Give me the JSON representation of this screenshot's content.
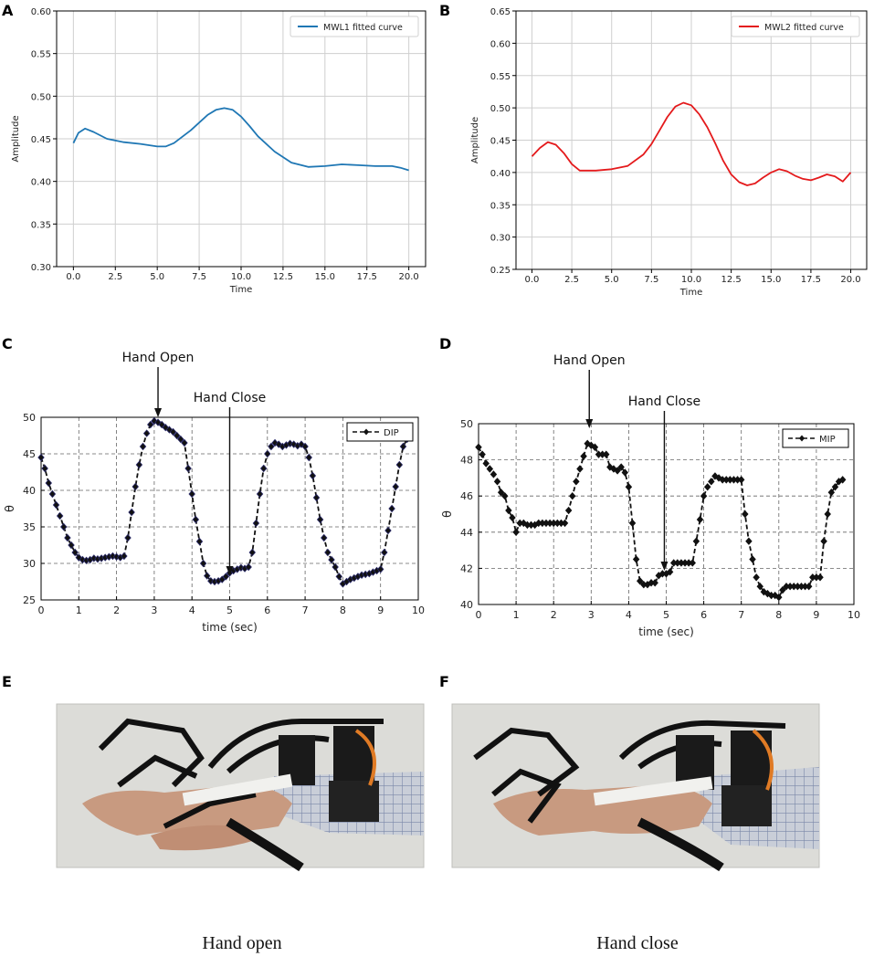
{
  "colors": {
    "blue": "#1f77b4",
    "red": "#e41a1c",
    "black": "#111111",
    "marker_outline": "#2a2a6a"
  },
  "chart_data": [
    {
      "panel": "A",
      "type": "line",
      "xlabel": "Time",
      "ylabel": "Amplitude",
      "xlim": [
        -1,
        21
      ],
      "ylim": [
        0.3,
        0.6
      ],
      "xticks": [
        0,
        2.5,
        5,
        7.5,
        10,
        12.5,
        15,
        17.5,
        20
      ],
      "xticklabels": [
        "0.0",
        "2.5",
        "5.0",
        "7.5",
        "10.0",
        "12.5",
        "15.0",
        "17.5",
        "20.0"
      ],
      "yticks": [
        0.3,
        0.35,
        0.4,
        0.45,
        0.5,
        0.55,
        0.6
      ],
      "yticklabels": [
        "0.30",
        "0.35",
        "0.40",
        "0.45",
        "0.50",
        "0.55",
        "0.60"
      ],
      "grid": true,
      "legend_position": "upper-right",
      "series": [
        {
          "name": "MWL1 fitted curve",
          "color": "blue",
          "x": [
            0,
            0.3,
            0.7,
            1.2,
            2,
            3,
            4,
            5,
            5.5,
            6,
            7,
            8,
            8.5,
            9,
            9.5,
            10,
            10.5,
            11,
            12,
            13,
            14,
            15,
            16,
            17,
            18,
            19,
            19.5,
            20
          ],
          "y": [
            0.445,
            0.457,
            0.462,
            0.458,
            0.45,
            0.446,
            0.444,
            0.441,
            0.441,
            0.445,
            0.46,
            0.478,
            0.484,
            0.486,
            0.484,
            0.476,
            0.465,
            0.453,
            0.435,
            0.422,
            0.417,
            0.418,
            0.42,
            0.419,
            0.418,
            0.418,
            0.416,
            0.413
          ]
        }
      ]
    },
    {
      "panel": "B",
      "type": "line",
      "xlabel": "Time",
      "ylabel": "Amplitude",
      "xlim": [
        -1,
        21
      ],
      "ylim": [
        0.25,
        0.65
      ],
      "xticks": [
        0,
        2.5,
        5,
        7.5,
        10,
        12.5,
        15,
        17.5,
        20
      ],
      "xticklabels": [
        "0.0",
        "2.5",
        "5.0",
        "7.5",
        "10.0",
        "12.5",
        "15.0",
        "17.5",
        "20.0"
      ],
      "yticks": [
        0.25,
        0.3,
        0.35,
        0.4,
        0.45,
        0.5,
        0.55,
        0.6,
        0.65
      ],
      "yticklabels": [
        "0.25",
        "0.30",
        "0.35",
        "0.40",
        "0.45",
        "0.50",
        "0.55",
        "0.60",
        "0.65"
      ],
      "grid": true,
      "legend_position": "upper-right",
      "series": [
        {
          "name": "MWL2 fitted curve",
          "color": "red",
          "x": [
            0,
            0.5,
            1,
            1.5,
            2,
            2.5,
            3,
            4,
            5,
            6,
            7,
            7.5,
            8,
            8.5,
            9,
            9.5,
            10,
            10.5,
            11,
            11.5,
            12,
            12.5,
            13,
            13.5,
            14,
            14.5,
            15,
            15.5,
            16,
            16.5,
            17,
            17.5,
            18,
            18.5,
            19,
            19.5,
            20
          ],
          "y": [
            0.425,
            0.438,
            0.447,
            0.443,
            0.43,
            0.413,
            0.403,
            0.403,
            0.405,
            0.41,
            0.428,
            0.444,
            0.465,
            0.486,
            0.502,
            0.508,
            0.504,
            0.49,
            0.47,
            0.445,
            0.418,
            0.397,
            0.385,
            0.38,
            0.383,
            0.392,
            0.4,
            0.405,
            0.402,
            0.395,
            0.39,
            0.388,
            0.392,
            0.397,
            0.394,
            0.386,
            0.4
          ]
        }
      ]
    },
    {
      "panel": "C",
      "type": "line",
      "xlabel": "time (sec)",
      "ylabel": "θ",
      "xlim": [
        0,
        10
      ],
      "ylim": [
        25,
        50
      ],
      "xticks": [
        0,
        1,
        2,
        3,
        4,
        5,
        6,
        7,
        8,
        9,
        10
      ],
      "xticklabels": [
        "0",
        "1",
        "2",
        "3",
        "4",
        "5",
        "6",
        "7",
        "8",
        "9",
        "10"
      ],
      "yticks": [
        25,
        30,
        35,
        40,
        45,
        50
      ],
      "yticklabels": [
        "25",
        "30",
        "35",
        "40",
        "45",
        "50"
      ],
      "grid": "dashed",
      "legend_position": "top-right",
      "annotations": [
        {
          "text": "Hand Open",
          "x": 3.1
        },
        {
          "text": "Hand Close",
          "x": 5.0
        }
      ],
      "series": [
        {
          "name": "DIP",
          "color": "black",
          "x": [
            0,
            0.1,
            0.2,
            0.3,
            0.4,
            0.5,
            0.6,
            0.7,
            0.8,
            0.9,
            1.0,
            1.1,
            1.2,
            1.3,
            1.4,
            1.5,
            1.6,
            1.7,
            1.8,
            1.9,
            2.0,
            2.1,
            2.2,
            2.3,
            2.4,
            2.5,
            2.6,
            2.7,
            2.8,
            2.9,
            3.0,
            3.1,
            3.2,
            3.3,
            3.4,
            3.5,
            3.6,
            3.7,
            3.8,
            3.9,
            4.0,
            4.1,
            4.2,
            4.3,
            4.4,
            4.5,
            4.6,
            4.7,
            4.8,
            4.9,
            5.0,
            5.1,
            5.2,
            5.3,
            5.4,
            5.5,
            5.6,
            5.7,
            5.8,
            5.9,
            6.0,
            6.1,
            6.2,
            6.3,
            6.4,
            6.5,
            6.6,
            6.7,
            6.8,
            6.9,
            7.0,
            7.1,
            7.2,
            7.3,
            7.4,
            7.5,
            7.6,
            7.7,
            7.8,
            7.9,
            8.0,
            8.1,
            8.2,
            8.3,
            8.4,
            8.5,
            8.6,
            8.7,
            8.8,
            8.9,
            9.0,
            9.1,
            9.2,
            9.3,
            9.4,
            9.5,
            9.6,
            9.7
          ],
          "y": [
            44.5,
            43.0,
            41.0,
            39.5,
            38.0,
            36.5,
            35.0,
            33.5,
            32.5,
            31.5,
            30.8,
            30.5,
            30.4,
            30.5,
            30.7,
            30.6,
            30.7,
            30.8,
            30.9,
            31.0,
            30.9,
            30.8,
            31.0,
            33.5,
            37.0,
            40.5,
            43.5,
            46.0,
            47.8,
            49.0,
            49.5,
            49.3,
            49.0,
            48.6,
            48.3,
            48.0,
            47.5,
            47.0,
            46.5,
            43.0,
            39.5,
            36.0,
            33.0,
            30.0,
            28.3,
            27.6,
            27.5,
            27.6,
            27.8,
            28.2,
            28.7,
            29.0,
            29.2,
            29.4,
            29.3,
            29.5,
            31.5,
            35.5,
            39.5,
            43.0,
            45.0,
            46.0,
            46.5,
            46.3,
            46.0,
            46.2,
            46.4,
            46.3,
            46.1,
            46.3,
            46.0,
            44.5,
            42.0,
            39.0,
            36.0,
            33.5,
            31.5,
            30.5,
            29.5,
            28.2,
            27.2,
            27.5,
            27.8,
            28.0,
            28.2,
            28.4,
            28.5,
            28.6,
            28.8,
            29.0,
            29.2,
            31.5,
            34.5,
            37.5,
            40.5,
            43.5,
            46.0,
            47.0
          ]
        }
      ]
    },
    {
      "panel": "D",
      "type": "line",
      "xlabel": "time (sec)",
      "ylabel": "θ",
      "xlim": [
        0,
        10
      ],
      "ylim": [
        40,
        50
      ],
      "xticks": [
        0,
        1,
        2,
        3,
        4,
        5,
        6,
        7,
        8,
        9,
        10
      ],
      "xticklabels": [
        "0",
        "1",
        "2",
        "3",
        "4",
        "5",
        "6",
        "7",
        "8",
        "9",
        "10"
      ],
      "yticks": [
        40,
        42,
        44,
        46,
        48,
        50
      ],
      "yticklabels": [
        "40",
        "42",
        "44",
        "46",
        "48",
        "50"
      ],
      "grid": "dashed",
      "legend_position": "top-right",
      "annotations": [
        {
          "text": "Hand Open",
          "x": 2.95
        },
        {
          "text": "Hand Close",
          "x": 4.95
        }
      ],
      "series": [
        {
          "name": "MIP",
          "color": "black",
          "x": [
            0,
            0.1,
            0.2,
            0.3,
            0.4,
            0.5,
            0.6,
            0.7,
            0.8,
            0.9,
            1.0,
            1.1,
            1.2,
            1.3,
            1.4,
            1.5,
            1.6,
            1.7,
            1.8,
            1.9,
            2.0,
            2.1,
            2.2,
            2.3,
            2.4,
            2.5,
            2.6,
            2.7,
            2.8,
            2.9,
            3.0,
            3.1,
            3.2,
            3.3,
            3.4,
            3.5,
            3.6,
            3.7,
            3.8,
            3.9,
            4.0,
            4.1,
            4.2,
            4.3,
            4.4,
            4.5,
            4.6,
            4.7,
            4.8,
            4.9,
            5.0,
            5.1,
            5.2,
            5.3,
            5.4,
            5.5,
            5.6,
            5.7,
            5.8,
            5.9,
            6.0,
            6.1,
            6.2,
            6.3,
            6.4,
            6.5,
            6.6,
            6.7,
            6.8,
            6.9,
            7.0,
            7.1,
            7.2,
            7.3,
            7.4,
            7.5,
            7.6,
            7.7,
            7.8,
            7.9,
            8.0,
            8.1,
            8.2,
            8.3,
            8.4,
            8.5,
            8.6,
            8.7,
            8.8,
            8.9,
            9.0,
            9.1,
            9.2,
            9.3,
            9.4,
            9.5,
            9.6,
            9.7
          ],
          "y": [
            48.7,
            48.3,
            47.8,
            47.5,
            47.2,
            46.8,
            46.2,
            46.0,
            45.2,
            44.8,
            44.0,
            44.5,
            44.5,
            44.4,
            44.4,
            44.4,
            44.5,
            44.5,
            44.5,
            44.5,
            44.5,
            44.5,
            44.5,
            44.5,
            45.2,
            46.0,
            46.8,
            47.5,
            48.2,
            48.9,
            48.8,
            48.7,
            48.3,
            48.3,
            48.3,
            47.6,
            47.5,
            47.4,
            47.6,
            47.3,
            46.5,
            44.5,
            42.5,
            41.3,
            41.1,
            41.1,
            41.2,
            41.2,
            41.6,
            41.7,
            41.7,
            41.8,
            42.3,
            42.3,
            42.3,
            42.3,
            42.3,
            42.3,
            43.5,
            44.7,
            46.0,
            46.5,
            46.8,
            47.1,
            47.0,
            46.9,
            46.9,
            46.9,
            46.9,
            46.9,
            46.9,
            45.0,
            43.5,
            42.5,
            41.5,
            41.0,
            40.7,
            40.6,
            40.5,
            40.5,
            40.4,
            40.8,
            41.0,
            41.0,
            41.0,
            41.0,
            41.0,
            41.0,
            41.0,
            41.5,
            41.5,
            41.5,
            43.5,
            45.0,
            46.2,
            46.5,
            46.8,
            46.9
          ]
        }
      ]
    }
  ],
  "panel_labels": [
    "A",
    "B",
    "C",
    "D",
    "E",
    "F"
  ],
  "photos": {
    "E": {
      "caption": "Hand open",
      "subject": "hand-exoskeleton-open"
    },
    "F": {
      "caption": "Hand close",
      "subject": "hand-exoskeleton-closed"
    }
  }
}
